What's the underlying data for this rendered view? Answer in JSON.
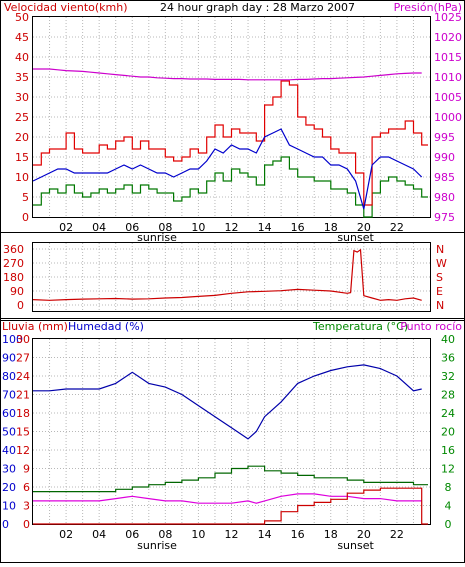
{
  "header": {
    "title": "24 hour graph day : 28 Marzo 2007",
    "left_label": "Velocidad viento(kmh)",
    "right_label": "Presión(hPa)"
  },
  "colors": {
    "wind_gust": "#e00000",
    "wind_avg": "#0000cc",
    "wind_min": "#007700",
    "pressure": "#cc00cc",
    "direction": "#cc0000",
    "rain": "#cc0000",
    "humidity": "#0000aa",
    "temperature": "#006600",
    "dewpoint": "#dd00dd",
    "grid": "#b8b8b8",
    "frame": "#000000",
    "label_red": "#cc0000",
    "label_blue": "#0000cc",
    "label_green": "#008800",
    "label_magenta": "#cc00cc"
  },
  "x_axis": {
    "ticks": [
      "02",
      "04",
      "06",
      "08",
      "10",
      "12",
      "14",
      "16",
      "18",
      "20",
      "22"
    ],
    "sunrise_label": "sunrise",
    "sunset_label": "sunset"
  },
  "panel3": {
    "left_label_rain": "Lluvia (mm)",
    "left_label_humidity": "Humedad (%)",
    "right_label_temp": "Temperatura (°C)",
    "right_label_dew": "Punto rocío"
  },
  "chart_data": [
    {
      "type": "line",
      "panel": "wind_pressure",
      "ylabel_left": "Velocidad viento(kmh)",
      "ylabel_right": "Presión(hPa)",
      "ylim_left": [
        0,
        50
      ],
      "ylim_right": [
        975,
        1025
      ],
      "yticks_left": [
        0,
        5,
        10,
        15,
        20,
        25,
        30,
        35,
        40,
        45,
        50
      ],
      "yticks_right": [
        975,
        980,
        985,
        990,
        995,
        1000,
        1005,
        1010,
        1015,
        1020,
        1025
      ],
      "x": [
        0,
        0.5,
        1,
        1.5,
        2,
        2.5,
        3,
        3.5,
        4,
        4.5,
        5,
        5.5,
        6,
        6.5,
        7,
        7.5,
        8,
        8.5,
        9,
        9.5,
        10,
        10.5,
        11,
        11.5,
        12,
        12.5,
        13,
        13.5,
        14,
        14.5,
        15,
        15.5,
        16,
        16.5,
        17,
        17.5,
        18,
        18.5,
        19,
        19.5,
        20,
        20.5,
        21,
        21.5,
        22,
        22.5,
        23,
        23.5
      ],
      "series": [
        {
          "name": "gust",
          "values": [
            13,
            16,
            17,
            17,
            21,
            17,
            16,
            16,
            18,
            17,
            19,
            20,
            17,
            19,
            17,
            17,
            15,
            14,
            15,
            17,
            16,
            20,
            23,
            20,
            22,
            21,
            21,
            19,
            28,
            30,
            34,
            33,
            25,
            23,
            22,
            20,
            17,
            16,
            16,
            11,
            3,
            20,
            21,
            22,
            22,
            24,
            21,
            18
          ]
        },
        {
          "name": "avg",
          "values": [
            9,
            10,
            11,
            12,
            12,
            11,
            11,
            11,
            11,
            11,
            12,
            13,
            12,
            13,
            12,
            11,
            11,
            10,
            11,
            12,
            12,
            14,
            17,
            16,
            18,
            17,
            17,
            16,
            20,
            21,
            22,
            18,
            17,
            16,
            15,
            15,
            13,
            13,
            12,
            9,
            2,
            13,
            15,
            15,
            14,
            13,
            12,
            10
          ]
        },
        {
          "name": "min",
          "values": [
            3,
            6,
            7,
            6,
            8,
            6,
            5,
            6,
            7,
            6,
            7,
            8,
            6,
            8,
            7,
            6,
            6,
            4,
            5,
            7,
            6,
            9,
            11,
            9,
            12,
            11,
            10,
            8,
            13,
            14,
            15,
            12,
            10,
            10,
            9,
            9,
            7,
            7,
            6,
            3,
            0,
            6,
            9,
            10,
            9,
            8,
            7,
            5
          ]
        },
        {
          "name": "pressure",
          "values": [
            1012,
            1012,
            1012,
            1011.8,
            1011.6,
            1011.5,
            1011.4,
            1011.2,
            1011,
            1010.8,
            1010.6,
            1010.4,
            1010.2,
            1010,
            1010,
            1009.8,
            1009.7,
            1009.6,
            1009.6,
            1009.5,
            1009.5,
            1009.5,
            1009.4,
            1009.4,
            1009.4,
            1009.4,
            1009.3,
            1009.3,
            1009.3,
            1009.3,
            1009.3,
            1009.3,
            1009.4,
            1009.4,
            1009.5,
            1009.6,
            1009.6,
            1009.7,
            1009.8,
            1009.9,
            1010,
            1010.2,
            1010.4,
            1010.6,
            1010.8,
            1010.9,
            1011,
            1011
          ]
        }
      ]
    },
    {
      "type": "line",
      "panel": "wind_direction",
      "ylim": [
        0,
        360
      ],
      "yticks": [
        0,
        90,
        180,
        270,
        360
      ],
      "right_labels": [
        "N",
        "W",
        "S",
        "E",
        "N"
      ],
      "x": [
        0,
        1,
        2,
        3,
        4,
        5,
        6,
        7,
        8,
        9,
        10,
        11,
        12,
        13,
        14,
        15,
        16,
        17,
        18,
        19,
        19.2,
        19.4,
        19.6,
        19.8,
        20,
        20.5,
        21,
        21.5,
        22,
        22.5,
        23,
        23.5
      ],
      "series": [
        {
          "name": "direction",
          "values": [
            35,
            30,
            35,
            38,
            40,
            42,
            38,
            40,
            45,
            48,
            55,
            62,
            75,
            85,
            88,
            92,
            100,
            95,
            90,
            75,
            80,
            350,
            340,
            355,
            60,
            45,
            30,
            35,
            30,
            40,
            45,
            30
          ]
        }
      ]
    },
    {
      "type": "line",
      "panel": "rain_humidity_temp",
      "ylabel_left": "Lluvia (mm)",
      "ylabel_left2": "Humedad (%)",
      "ylabel_right": "Temperatura (°C)",
      "ylabel_right2": "Punto rocío",
      "ylim_humidity": [
        0,
        100
      ],
      "ylim_rain": [
        0,
        30
      ],
      "ylim_temp": [
        0,
        40
      ],
      "yticks_humidity": [
        0,
        10,
        20,
        30,
        40,
        50,
        60,
        70,
        80,
        90,
        100
      ],
      "yticks_rain": [
        0,
        3,
        6,
        9,
        12,
        15,
        18,
        21,
        24,
        27,
        30
      ],
      "yticks_temp": [
        0,
        4,
        8,
        12,
        16,
        20,
        24,
        28,
        32,
        36,
        40
      ],
      "x": [
        0,
        1,
        2,
        3,
        4,
        5,
        6,
        7,
        8,
        9,
        10,
        11,
        12,
        13,
        13.5,
        14,
        15,
        16,
        17,
        18,
        19,
        20,
        21,
        22,
        23,
        23.5
      ],
      "series": [
        {
          "name": "humidity",
          "values": [
            72,
            72,
            73,
            73,
            73,
            76,
            82,
            76,
            74,
            70,
            64,
            58,
            52,
            46,
            50,
            58,
            66,
            76,
            80,
            83,
            85,
            86,
            84,
            80,
            72,
            73
          ]
        },
        {
          "name": "temperature",
          "values": [
            7,
            7,
            7,
            7,
            7,
            7.5,
            8,
            8.5,
            9,
            9.5,
            10,
            11,
            12,
            12.5,
            12.5,
            11.5,
            11,
            10.5,
            10,
            10,
            9.5,
            9,
            9,
            9,
            8.5,
            8.5
          ]
        },
        {
          "name": "dewpoint",
          "values": [
            5,
            5,
            5,
            5,
            5,
            5.5,
            6,
            5.5,
            5,
            5,
            4.5,
            4.5,
            4.5,
            5,
            4.5,
            5,
            6,
            6.5,
            6.5,
            6,
            6,
            5.5,
            5.5,
            5,
            5,
            5
          ]
        },
        {
          "name": "rain",
          "values": [
            0,
            0,
            0,
            0,
            0,
            0,
            0,
            0,
            0,
            0,
            0,
            0,
            0,
            0,
            0,
            0.5,
            2,
            3,
            3.5,
            4,
            5,
            5.5,
            5.8,
            5.8,
            5.8,
            0
          ]
        }
      ]
    }
  ]
}
